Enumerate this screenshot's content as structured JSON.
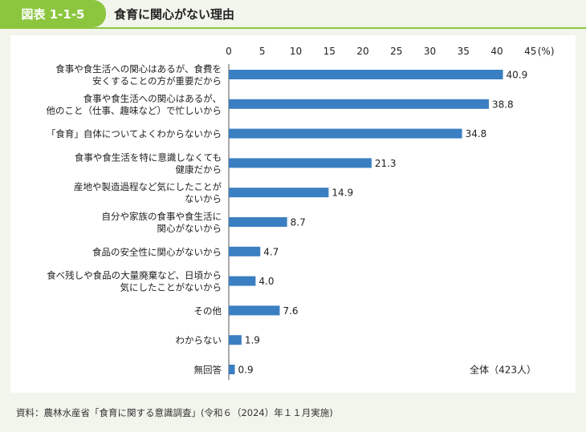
{
  "header": {
    "figure_tag": "図表 1-1-5",
    "title": "食育に関心がない理由"
  },
  "source_note": "資料：農林水産省「食育に関する意識調査」(令和６（2024）年１１月実施)",
  "colors": {
    "accent": "#8cc63f",
    "bar": "#3a7fc1",
    "background": "#f2f5ec",
    "panel": "#ffffff"
  },
  "chart_data": {
    "type": "bar",
    "orientation": "horizontal",
    "unit_label": "(%)",
    "total_label": "全体（423人）",
    "xlim": [
      0,
      45
    ],
    "ticks": [
      0,
      5,
      10,
      15,
      20,
      25,
      30,
      35,
      40,
      45
    ],
    "grid": false,
    "categories": [
      [
        "食事や食生活への関心はあるが、食費を",
        "安くすることの方が重要だから"
      ],
      [
        "食事や食生活への関心はあるが、",
        "他のこと（仕事、趣味など）で忙しいから"
      ],
      [
        "「食育」自体についてよくわからないから"
      ],
      [
        "食事や食生活を特に意識しなくても",
        "健康だから"
      ],
      [
        "産地や製造過程など気にしたことが",
        "ないから"
      ],
      [
        "自分や家族の食事や食生活に",
        "関心がないから"
      ],
      [
        "食品の安全性に関心がないから"
      ],
      [
        "食べ残しや食品の大量廃棄など、日頃から",
        "気にしたことがないから"
      ],
      [
        "その他"
      ],
      [
        "わからない"
      ],
      [
        "無回答"
      ]
    ],
    "values": [
      40.9,
      38.8,
      34.8,
      21.3,
      14.9,
      8.7,
      4.7,
      4.0,
      7.6,
      1.9,
      0.9
    ],
    "value_labels": [
      "40.9",
      "38.8",
      "34.8",
      "21.3",
      "14.9",
      "8.7",
      "4.7",
      "4.0",
      "7.6",
      "1.9",
      "0.9"
    ]
  }
}
